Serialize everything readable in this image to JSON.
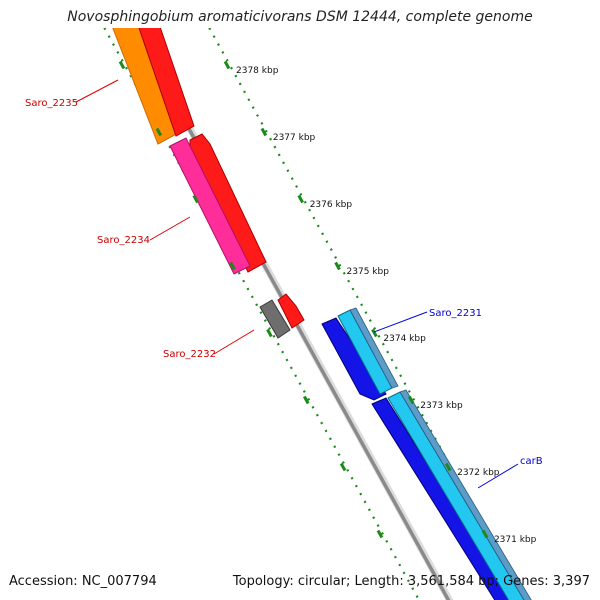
{
  "title": "Novosphingobium aromaticivorans DSM 12444, complete genome",
  "footer": {
    "accession": "Accession: NC_007794",
    "summary": "Topology: circular; Length: 3,561,584 bp; Genes: 3,397"
  },
  "colors": {
    "backbone": "#9a9a9a",
    "ticks": "#1a8a1a",
    "reverse_label": "#cc0000",
    "forward_label": "#0000cc"
  },
  "ticks": [
    {
      "label": "2378 kbp",
      "kbp": 2378
    },
    {
      "label": "2377 kbp",
      "kbp": 2377
    },
    {
      "label": "2376 kbp",
      "kbp": 2376
    },
    {
      "label": "2375 kbp",
      "kbp": 2375
    },
    {
      "label": "2374 kbp",
      "kbp": 2374
    },
    {
      "label": "2373 kbp",
      "kbp": 2373
    },
    {
      "label": "2372 kbp",
      "kbp": 2372
    },
    {
      "label": "2371 kbp",
      "kbp": 2371
    }
  ],
  "genes": [
    {
      "label": "Saro_2235",
      "strand": "reverse"
    },
    {
      "label": "Saro_2234",
      "strand": "reverse"
    },
    {
      "label": "Saro_2232",
      "strand": "reverse"
    },
    {
      "label": "Saro_2231",
      "strand": "forward"
    },
    {
      "label": "carB",
      "strand": "forward"
    }
  ]
}
